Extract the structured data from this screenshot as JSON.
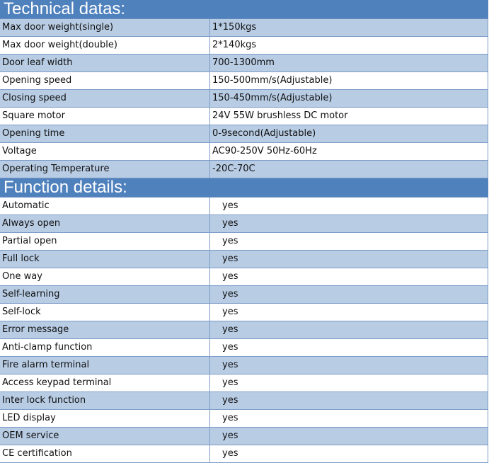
{
  "technical": {
    "title": "Technical datas:",
    "rows": [
      [
        "Max door weight(single)",
        "1*150kgs"
      ],
      [
        "Max door weight(double)",
        "2*140kgs"
      ],
      [
        "Door leaf width",
        "700-1300mm"
      ],
      [
        "Opening speed",
        "150-500mm/s(Adjustable)"
      ],
      [
        "Closing speed",
        "150-450mm/s(Adjustable)"
      ],
      [
        "Square motor",
        "24V 55W brushless DC motor"
      ],
      [
        "Opening time",
        "0-9second(Adjustable)"
      ],
      [
        "Voltage",
        "AC90-250V 50Hz-60Hz"
      ],
      [
        "Operating Temperature",
        "-20C-70C"
      ]
    ]
  },
  "functions": {
    "title": "Function details:",
    "rows": [
      [
        "Automatic",
        "yes"
      ],
      [
        "Always open",
        "yes"
      ],
      [
        "Partial open",
        "yes"
      ],
      [
        "Full lock",
        "yes"
      ],
      [
        "One way",
        "yes"
      ],
      [
        "Self-learning",
        "yes"
      ],
      [
        "Self-lock",
        "yes"
      ],
      [
        "Error message",
        "yes"
      ],
      [
        "Anti-clamp function",
        "yes"
      ],
      [
        "Fire alarm terminal",
        "yes"
      ],
      [
        "Access keypad terminal",
        "yes"
      ],
      [
        "Inter lock function",
        "yes"
      ],
      [
        "LED display",
        "yes"
      ],
      [
        "OEM service",
        "yes"
      ],
      [
        "CE certification",
        "yes"
      ]
    ]
  },
  "colors": {
    "header": "#4f81bd",
    "row_alt": "#b8cce4",
    "border": "#7b9bc8"
  }
}
